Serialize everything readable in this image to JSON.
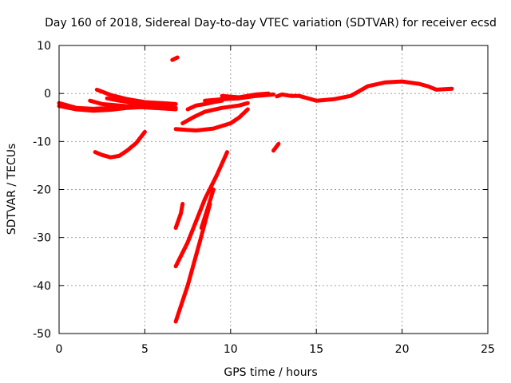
{
  "chart_data": {
    "type": "scatter",
    "title": "Day 160 of 2018, Sidereal Day-to-day VTEC variation (SDTVAR) for receiver ecsd",
    "xlabel": "GPS time / hours",
    "ylabel": "SDTVAR / TECUs",
    "xlim": [
      0,
      25
    ],
    "ylim": [
      -50,
      10
    ],
    "xticks": [
      "0",
      "5",
      "10",
      "15",
      "20",
      "25"
    ],
    "yticks": [
      "10",
      "0",
      "-10",
      "-20",
      "-30",
      "-40",
      "-50"
    ],
    "grid": true,
    "marker_color": "#ff0000",
    "series": [
      {
        "name": "arc-main-baseline",
        "points": [
          [
            0,
            -2.0
          ],
          [
            0.5,
            -2.5
          ],
          [
            1,
            -3.0
          ],
          [
            2,
            -3.2
          ],
          [
            3,
            -3.0
          ],
          [
            4,
            -2.6
          ],
          [
            5,
            -2.5
          ],
          [
            6,
            -2.8
          ],
          [
            6.8,
            -3.0
          ]
        ]
      },
      {
        "name": "arc-lower-left",
        "points": [
          [
            0,
            -2.6
          ],
          [
            1,
            -3.3
          ],
          [
            2,
            -3.6
          ],
          [
            3,
            -3.4
          ],
          [
            4,
            -3.0
          ],
          [
            5,
            -2.8
          ],
          [
            6,
            -3.1
          ],
          [
            6.8,
            -3.3
          ]
        ]
      },
      {
        "name": "arc-upper-left-a",
        "points": [
          [
            2.2,
            0.8
          ],
          [
            3,
            -0.3
          ],
          [
            4,
            -1.2
          ],
          [
            5,
            -1.8
          ],
          [
            6,
            -2.0
          ],
          [
            6.8,
            -2.2
          ]
        ]
      },
      {
        "name": "arc-upper-left-b",
        "points": [
          [
            1.8,
            -1.5
          ],
          [
            2.5,
            -2.2
          ],
          [
            3.5,
            -2.5
          ],
          [
            4.5,
            -2.8
          ],
          [
            5.5,
            -3.0
          ],
          [
            6.5,
            -3.2
          ]
        ]
      },
      {
        "name": "arc-upper-left-c",
        "points": [
          [
            2.8,
            -1.0
          ],
          [
            3.5,
            -1.5
          ],
          [
            4.5,
            -2.0
          ],
          [
            5.5,
            -2.4
          ]
        ]
      },
      {
        "name": "arc-dip",
        "points": [
          [
            2.1,
            -12.2
          ],
          [
            2.5,
            -12.8
          ],
          [
            3,
            -13.3
          ],
          [
            3.5,
            -13.0
          ],
          [
            4,
            -11.8
          ],
          [
            4.5,
            -10.3
          ],
          [
            5.0,
            -8.0
          ]
        ]
      },
      {
        "name": "arc-isolated",
        "points": [
          [
            6.6,
            7.0
          ],
          [
            6.9,
            7.5
          ]
        ]
      },
      {
        "name": "arc-mid-a",
        "points": [
          [
            6.8,
            -7.4
          ],
          [
            7.5,
            -7.6
          ],
          [
            8,
            -7.7
          ],
          [
            9,
            -7.3
          ],
          [
            10,
            -6.2
          ],
          [
            10.5,
            -5.0
          ],
          [
            11.0,
            -3.3
          ]
        ]
      },
      {
        "name": "arc-mid-b",
        "points": [
          [
            7.2,
            -6.2
          ],
          [
            7.8,
            -5.0
          ],
          [
            8.5,
            -3.8
          ],
          [
            9.5,
            -3.0
          ],
          [
            10.5,
            -2.5
          ],
          [
            11,
            -2.0
          ]
        ]
      },
      {
        "name": "arc-mid-c",
        "points": [
          [
            7.5,
            -3.3
          ],
          [
            8,
            -2.5
          ],
          [
            8.5,
            -2.2
          ],
          [
            9,
            -1.8
          ],
          [
            9.5,
            -1.5
          ]
        ]
      },
      {
        "name": "arc-mid-d",
        "points": [
          [
            8.5,
            -1.5
          ],
          [
            9.5,
            -1.2
          ],
          [
            10.5,
            -1.0
          ],
          [
            11.5,
            -0.5
          ],
          [
            12.5,
            -0.2
          ]
        ]
      },
      {
        "name": "arc-mid-e",
        "points": [
          [
            9.5,
            -0.5
          ],
          [
            10.5,
            -0.8
          ],
          [
            11.5,
            -0.2
          ],
          [
            12.2,
            0.0
          ]
        ]
      },
      {
        "name": "arc-short",
        "points": [
          [
            12.5,
            -11.9
          ],
          [
            12.8,
            -10.5
          ]
        ]
      },
      {
        "name": "arc-long-late",
        "points": [
          [
            12.7,
            -0.6
          ],
          [
            13,
            -0.2
          ],
          [
            13.5,
            -0.5
          ],
          [
            14,
            -0.5
          ],
          [
            15,
            -1.5
          ],
          [
            16,
            -1.2
          ],
          [
            17,
            -0.5
          ],
          [
            17.5,
            0.5
          ],
          [
            18,
            1.5
          ],
          [
            19,
            2.3
          ],
          [
            20,
            2.5
          ],
          [
            21,
            2.0
          ],
          [
            21.5,
            1.5
          ],
          [
            22,
            0.8
          ],
          [
            22.5,
            0.9
          ],
          [
            22.9,
            1.0
          ]
        ]
      },
      {
        "name": "arc-steep-1",
        "points": [
          [
            6.8,
            -47.5
          ],
          [
            7.5,
            -40.0
          ],
          [
            8.2,
            -31.0
          ],
          [
            8.8,
            -23.0
          ]
        ]
      },
      {
        "name": "arc-steep-2",
        "points": [
          [
            6.8,
            -36.0
          ],
          [
            7.5,
            -31.0
          ],
          [
            8.5,
            -22.0
          ],
          [
            9.2,
            -17.0
          ],
          [
            9.8,
            -12.2
          ]
        ]
      },
      {
        "name": "arc-steep-3",
        "points": [
          [
            6.8,
            -28.0
          ],
          [
            7.1,
            -25.0
          ],
          [
            7.2,
            -23.0
          ]
        ]
      },
      {
        "name": "arc-steep-4",
        "points": [
          [
            8.3,
            -28.0
          ],
          [
            8.7,
            -23.5
          ],
          [
            9.0,
            -20.0
          ]
        ]
      }
    ]
  }
}
